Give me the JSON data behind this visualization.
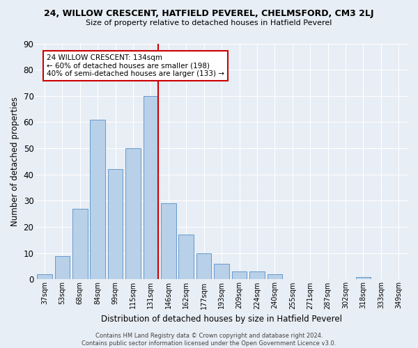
{
  "title": "24, WILLOW CRESCENT, HATFIELD PEVEREL, CHELMSFORD, CM3 2LJ",
  "subtitle": "Size of property relative to detached houses in Hatfield Peverel",
  "xlabel": "Distribution of detached houses by size in Hatfield Peverel",
  "ylabel": "Number of detached properties",
  "bar_values": [
    2,
    9,
    27,
    61,
    42,
    50,
    70,
    29,
    17,
    10,
    6,
    3,
    3,
    2,
    0,
    0,
    0,
    0,
    1,
    0,
    0
  ],
  "bar_labels": [
    "37sqm",
    "53sqm",
    "68sqm",
    "84sqm",
    "99sqm",
    "115sqm",
    "131sqm",
    "146sqm",
    "162sqm",
    "177sqm",
    "193sqm",
    "209sqm",
    "224sqm",
    "240sqm",
    "255sqm",
    "271sqm",
    "287sqm",
    "302sqm",
    "318sqm",
    "333sqm",
    "349sqm"
  ],
  "bar_color": "#b8d0e8",
  "bar_edge_color": "#6699cc",
  "bg_color": "#e8eef5",
  "grid_color": "#ffffff",
  "vline_color": "#cc0000",
  "vline_x_index": 6,
  "ylim": [
    0,
    90
  ],
  "yticks": [
    0,
    10,
    20,
    30,
    40,
    50,
    60,
    70,
    80,
    90
  ],
  "annotation_text": "24 WILLOW CRESCENT: 134sqm\n← 60% of detached houses are smaller (198)\n40% of semi-detached houses are larger (133) →",
  "annotation_box_edge_color": "#cc0000",
  "footer": "Contains HM Land Registry data © Crown copyright and database right 2024.\nContains public sector information licensed under the Open Government Licence v3.0."
}
